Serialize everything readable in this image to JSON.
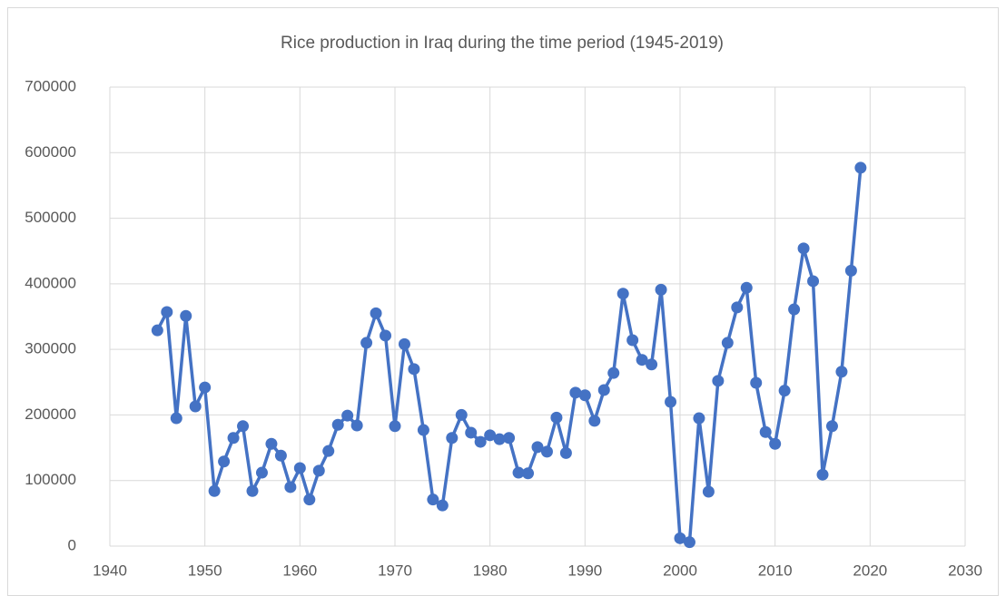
{
  "chart_data": {
    "type": "line",
    "title": "Rice production in Iraq during the time period (1945-2019)",
    "x": [
      1945,
      1946,
      1947,
      1948,
      1949,
      1950,
      1951,
      1952,
      1953,
      1954,
      1955,
      1956,
      1957,
      1958,
      1959,
      1960,
      1961,
      1962,
      1963,
      1964,
      1965,
      1966,
      1967,
      1968,
      1969,
      1970,
      1971,
      1972,
      1973,
      1974,
      1975,
      1976,
      1977,
      1978,
      1979,
      1980,
      1981,
      1982,
      1983,
      1984,
      1985,
      1986,
      1987,
      1988,
      1989,
      1990,
      1991,
      1992,
      1993,
      1994,
      1995,
      1996,
      1997,
      1998,
      1999,
      2000,
      2001,
      2002,
      2003,
      2004,
      2005,
      2006,
      2007,
      2008,
      2009,
      2010,
      2011,
      2012,
      2013,
      2014,
      2015,
      2016,
      2017,
      2018,
      2019
    ],
    "series": [
      {
        "color": "#4472c4",
        "values": [
          329000,
          357000,
          195000,
          351000,
          213000,
          242000,
          84000,
          129000,
          165000,
          183000,
          84000,
          112000,
          156000,
          138000,
          90000,
          119000,
          71000,
          115000,
          145000,
          185000,
          199000,
          184000,
          310000,
          355000,
          321000,
          183000,
          308000,
          270000,
          177000,
          71000,
          62000,
          165000,
          200000,
          173000,
          159000,
          169000,
          163000,
          165000,
          112000,
          111000,
          151000,
          144000,
          196000,
          142000,
          234000,
          230000,
          191000,
          238000,
          264000,
          385000,
          314000,
          284000,
          277000,
          391000,
          220000,
          12000,
          6000,
          195000,
          83000,
          252000,
          310000,
          364000,
          394000,
          249000,
          174000,
          156000,
          237000,
          361000,
          454000,
          404000,
          109000,
          183000,
          266000,
          420000,
          577000
        ]
      }
    ],
    "xlim": [
      1940,
      2030
    ],
    "xticks": [
      1940,
      1950,
      1960,
      1970,
      1980,
      1990,
      2000,
      2010,
      2020,
      2030
    ],
    "ylim": [
      0,
      700000
    ],
    "yticks": [
      0,
      100000,
      200000,
      300000,
      400000,
      500000,
      600000,
      700000
    ],
    "grid": true
  }
}
